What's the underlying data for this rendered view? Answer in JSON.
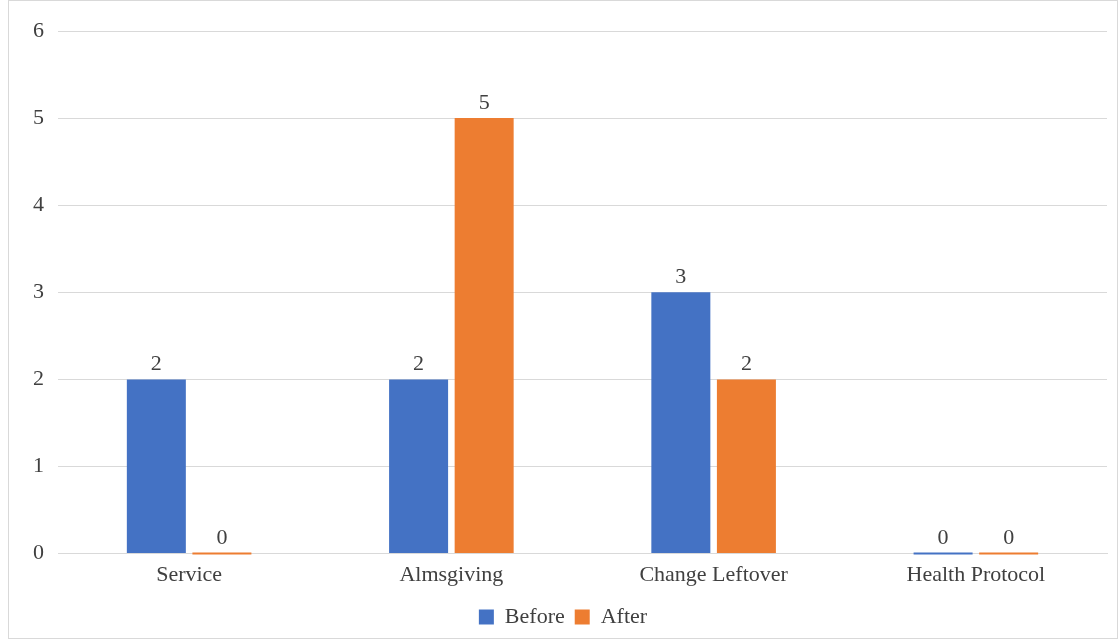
{
  "chart_data": {
    "type": "bar",
    "categories": [
      "Service",
      "Almsgiving",
      "Change Leftover",
      "Health Protocol"
    ],
    "series": [
      {
        "name": "Before",
        "color": "#4472c4",
        "values": [
          2,
          2,
          3,
          0
        ]
      },
      {
        "name": "After",
        "color": "#ed7d31",
        "values": [
          0,
          5,
          2,
          0
        ]
      }
    ],
    "ylim": [
      0,
      6
    ],
    "yticks": [
      0,
      1,
      2,
      3,
      4,
      5,
      6
    ],
    "grid": "y",
    "legend": "bottom",
    "data_labels": true
  }
}
